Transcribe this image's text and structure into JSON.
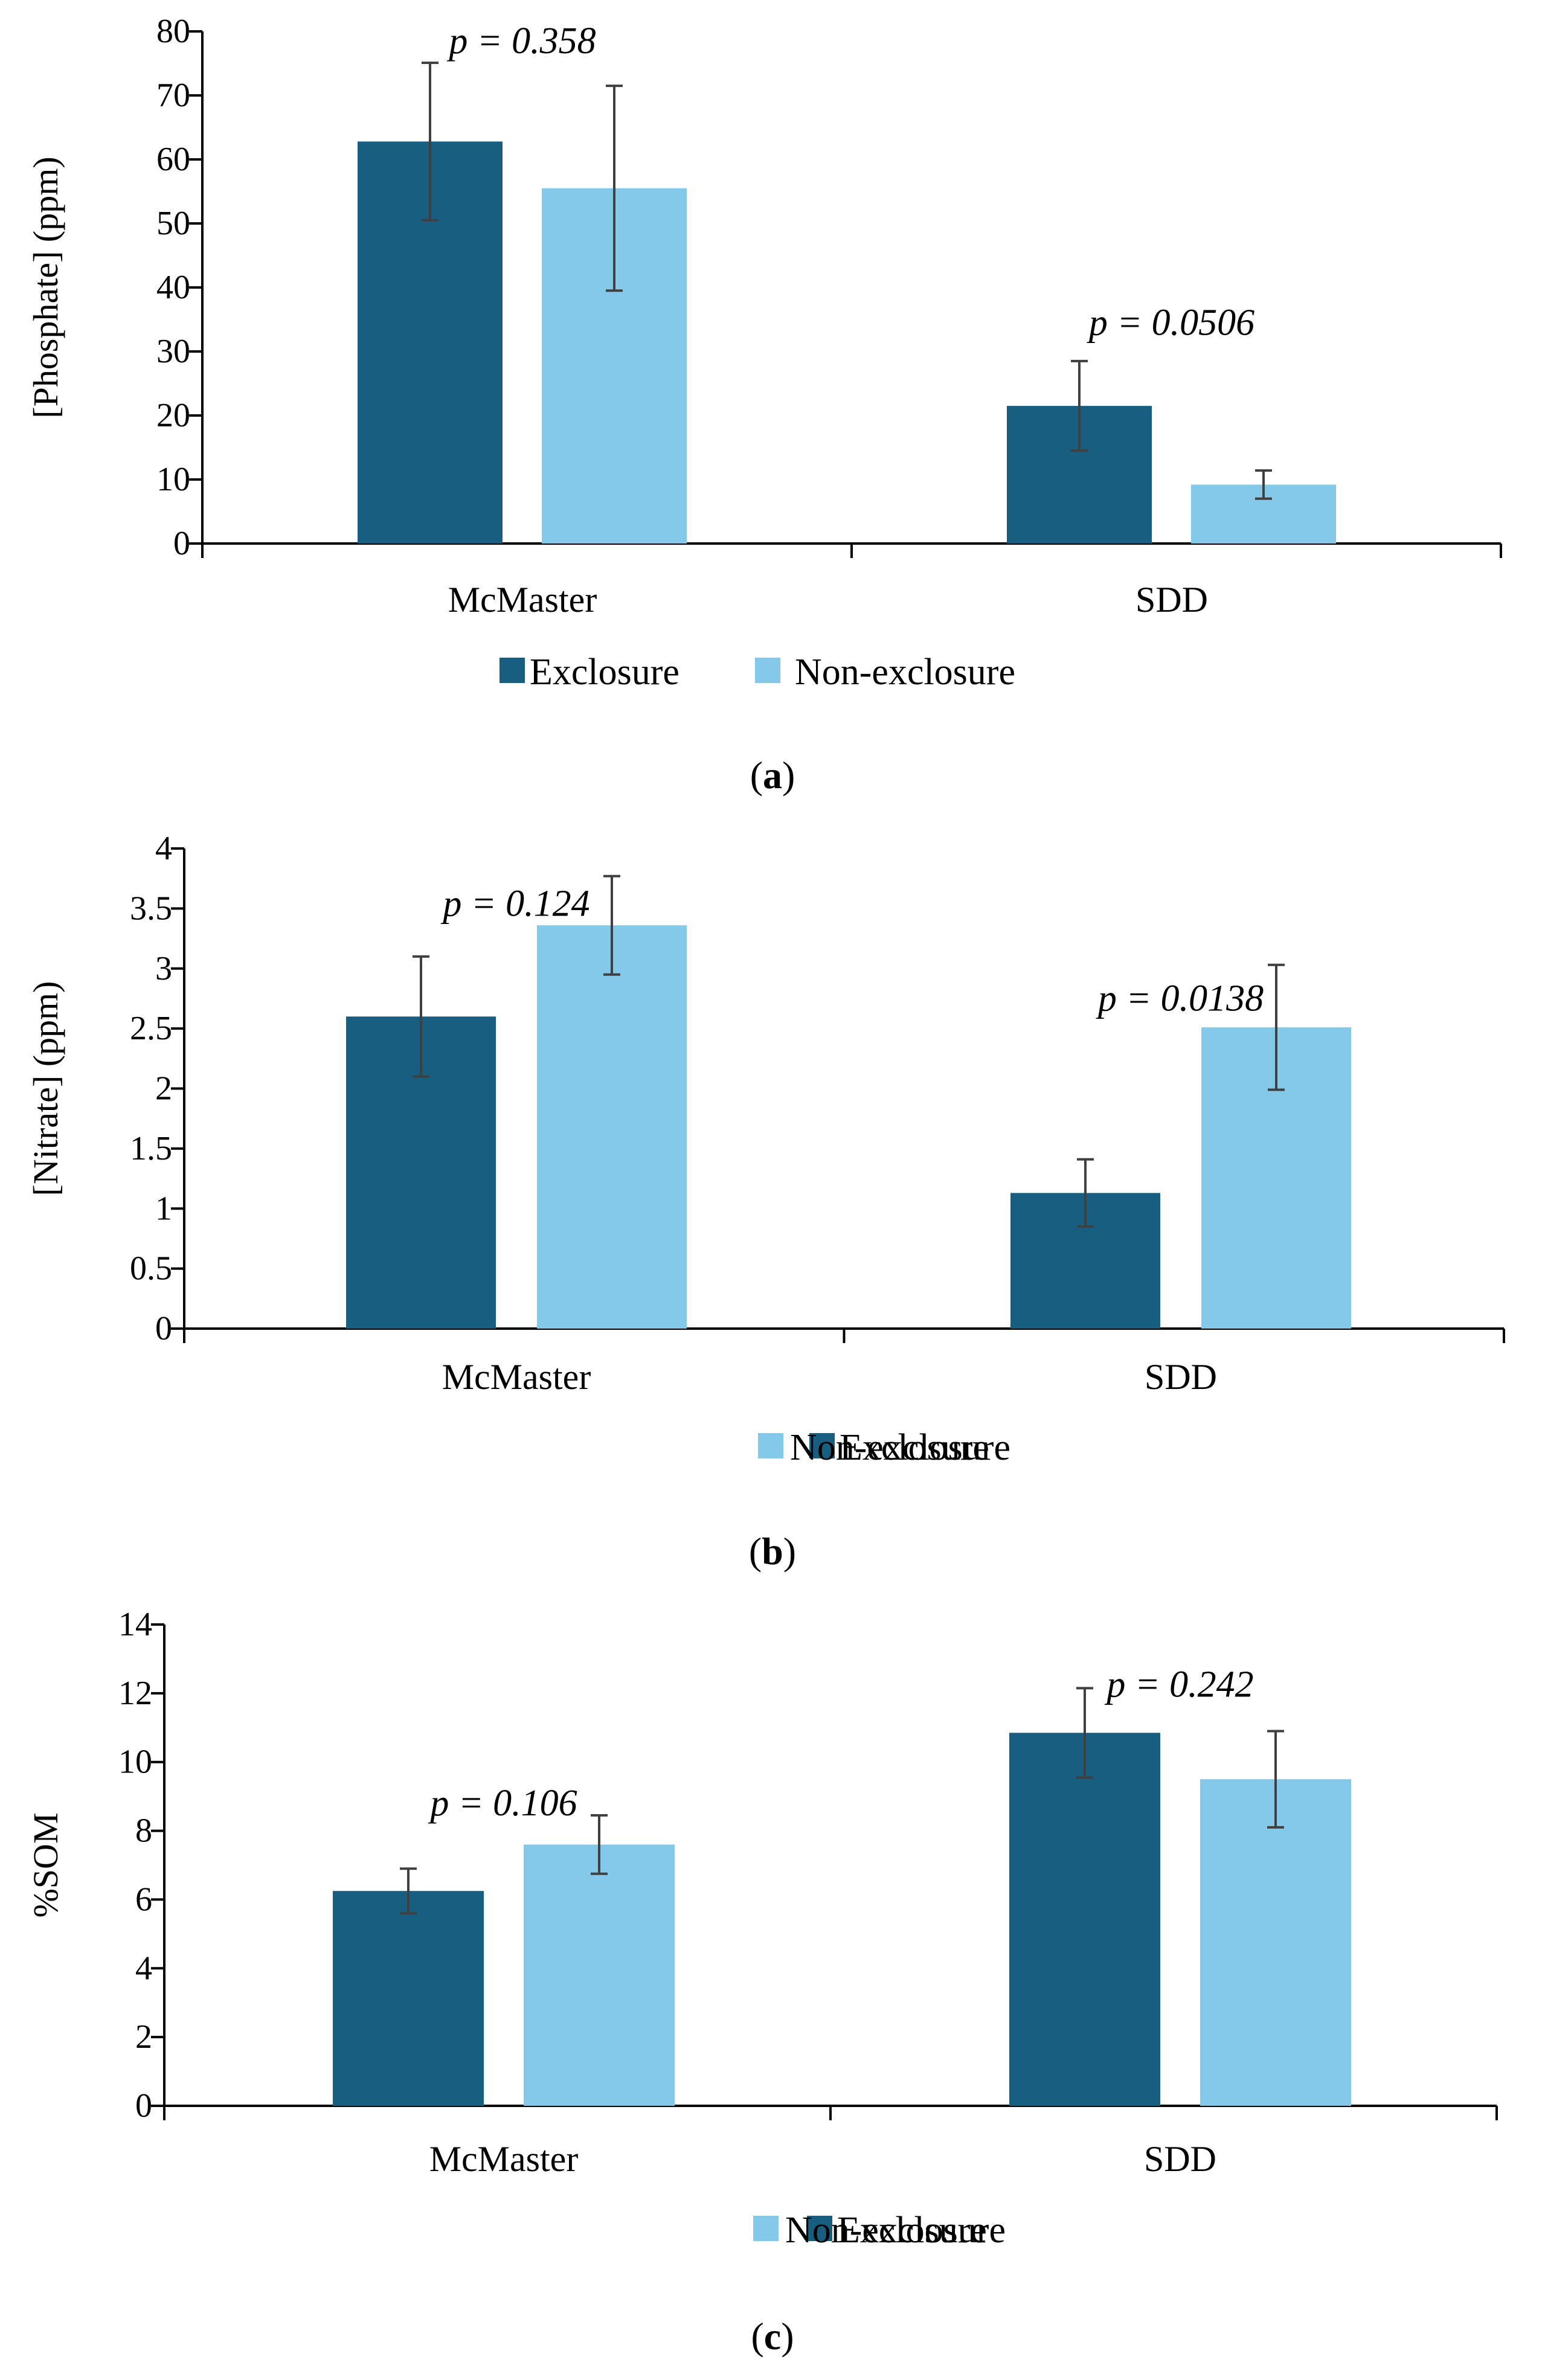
{
  "colors": {
    "exclosure": "#175E80",
    "non_exclosure": "#84C9E9",
    "axis": "#000000",
    "error_bar": "#404040",
    "text": "#000000"
  },
  "legend": {
    "exclosure": "Exclosure",
    "non_exclosure": "Non-exclosure"
  },
  "chart_data": [
    {
      "type": "bar",
      "panel_label": "a",
      "title": "",
      "xlabel": "",
      "ylabel": "[Phosphate] (ppm)",
      "categories": [
        "McMaster",
        "SDD"
      ],
      "ylim": [
        0,
        80
      ],
      "yticks": [
        0,
        10,
        20,
        30,
        40,
        50,
        60,
        70,
        80
      ],
      "tick_labels": [
        "0",
        "10",
        "20",
        "30",
        "40",
        "50",
        "60",
        "70",
        "80"
      ],
      "series": [
        {
          "name": "Exclosure",
          "values": [
            62.8,
            21.5
          ],
          "errors": [
            12.3,
            7.0
          ]
        },
        {
          "name": "Non-exclosure",
          "values": [
            55.5,
            9.2
          ],
          "errors": [
            16.0,
            2.2
          ]
        }
      ],
      "annotations": [
        {
          "category": "McMaster",
          "text": "p = 0.358",
          "at_value": 78.5
        },
        {
          "category": "SDD",
          "text": "p = 0.0506",
          "at_value": 34.5
        }
      ]
    },
    {
      "type": "bar",
      "panel_label": "b",
      "title": "",
      "xlabel": "",
      "ylabel": "[Nitrate] (ppm)",
      "categories": [
        "McMaster",
        "SDD"
      ],
      "ylim": [
        0,
        4
      ],
      "yticks": [
        0,
        0.5,
        1,
        1.5,
        2,
        2.5,
        3,
        3.5,
        4
      ],
      "tick_labels": [
        "0",
        "0.5",
        "1",
        "1.5",
        "2",
        "2.5",
        "3",
        "3.5",
        "4"
      ],
      "series": [
        {
          "name": "Exclosure",
          "values": [
            2.6,
            1.13
          ],
          "errors": [
            0.5,
            0.28
          ]
        },
        {
          "name": "Non-exclosure",
          "values": [
            3.36,
            2.51
          ],
          "errors": [
            0.41,
            0.52
          ]
        }
      ],
      "annotations": [
        {
          "category": "McMaster",
          "text": "p = 0.124",
          "at_value": 3.54
        },
        {
          "category": "SDD",
          "text": "p = 0.0138",
          "at_value": 2.75
        }
      ]
    },
    {
      "type": "bar",
      "panel_label": "c",
      "title": "",
      "xlabel": "",
      "ylabel": "%SOM",
      "categories": [
        "McMaster",
        "SDD"
      ],
      "ylim": [
        0,
        14
      ],
      "yticks": [
        0,
        2,
        4,
        6,
        8,
        10,
        12,
        14
      ],
      "tick_labels": [
        "0",
        "2",
        "4",
        "6",
        "8",
        "10",
        "12",
        "14"
      ],
      "series": [
        {
          "name": "Exclosure",
          "values": [
            6.25,
            10.85
          ],
          "errors": [
            0.65,
            1.3
          ]
        },
        {
          "name": "Non-exclosure",
          "values": [
            7.6,
            9.5
          ],
          "errors": [
            0.85,
            1.4
          ]
        }
      ],
      "annotations": [
        {
          "category": "McMaster",
          "text": "p = 0.106",
          "at_value": 8.8
        },
        {
          "category": "SDD",
          "text": "p = 0.242",
          "at_value": 12.25
        }
      ]
    }
  ]
}
